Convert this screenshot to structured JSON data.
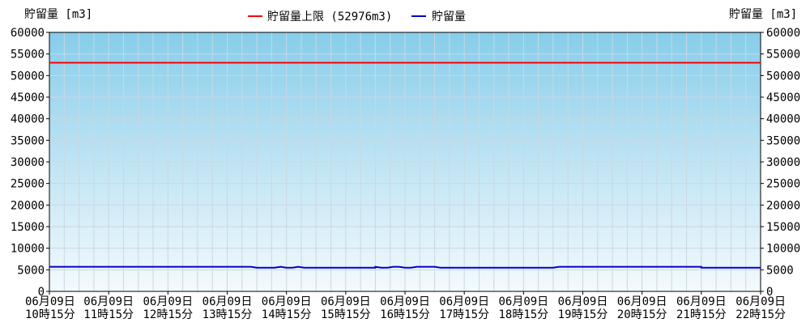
{
  "chart_data": {
    "type": "line",
    "ylabel_left": "貯留量 [m3]",
    "ylabel_right": "貯留量 [m3]",
    "ylim": [
      0,
      60000
    ],
    "yticks": [
      0,
      5000,
      10000,
      15000,
      20000,
      25000,
      30000,
      35000,
      40000,
      45000,
      50000,
      55000,
      60000
    ],
    "xticks": [
      {
        "line1": "06月09日",
        "line2": "10時15分"
      },
      {
        "line1": "06月09日",
        "line2": "11時15分"
      },
      {
        "line1": "06月09日",
        "line2": "12時15分"
      },
      {
        "line1": "06月09日",
        "line2": "13時15分"
      },
      {
        "line1": "06月09日",
        "line2": "14時15分"
      },
      {
        "line1": "06月09日",
        "line2": "15時15分"
      },
      {
        "line1": "06月09日",
        "line2": "16時15分"
      },
      {
        "line1": "06月09日",
        "line2": "17時15分"
      },
      {
        "line1": "06月09日",
        "line2": "18時15分"
      },
      {
        "line1": "06月09日",
        "line2": "19時15分"
      },
      {
        "line1": "06月09日",
        "line2": "20時15分"
      },
      {
        "line1": "06月09日",
        "line2": "21時15分"
      },
      {
        "line1": "06月09日",
        "line2": "22時15分"
      }
    ],
    "x_range_hours": [
      0,
      12
    ],
    "grid": true,
    "legend_position": "top-center",
    "series": [
      {
        "name": "貯留量上限 (52976m3)",
        "color": "#ff0000",
        "x": [
          0,
          12
        ],
        "values": [
          52976,
          52976
        ]
      },
      {
        "name": "貯留量",
        "color": "#0000cc",
        "x": [
          0,
          0.5,
          1,
          1.5,
          2,
          2.5,
          3,
          3.4,
          3.5,
          3.8,
          3.9,
          4.0,
          4.1,
          4.2,
          4.3,
          4.5,
          5,
          5.5,
          5.5,
          5.6,
          5.7,
          5.8,
          5.9,
          6.0,
          6.1,
          6.2,
          6.3,
          6.5,
          6.6,
          7,
          7.5,
          8,
          8.5,
          8.6,
          9,
          9.5,
          10,
          10.5,
          11,
          11,
          11.5,
          12
        ],
        "values": [
          5700,
          5700,
          5700,
          5700,
          5700,
          5700,
          5700,
          5700,
          5500,
          5500,
          5700,
          5500,
          5500,
          5700,
          5500,
          5500,
          5500,
          5500,
          5700,
          5500,
          5500,
          5700,
          5700,
          5500,
          5500,
          5700,
          5700,
          5700,
          5500,
          5500,
          5500,
          5500,
          5500,
          5700,
          5700,
          5700,
          5700,
          5700,
          5700,
          5500,
          5500,
          5500
        ]
      }
    ]
  }
}
